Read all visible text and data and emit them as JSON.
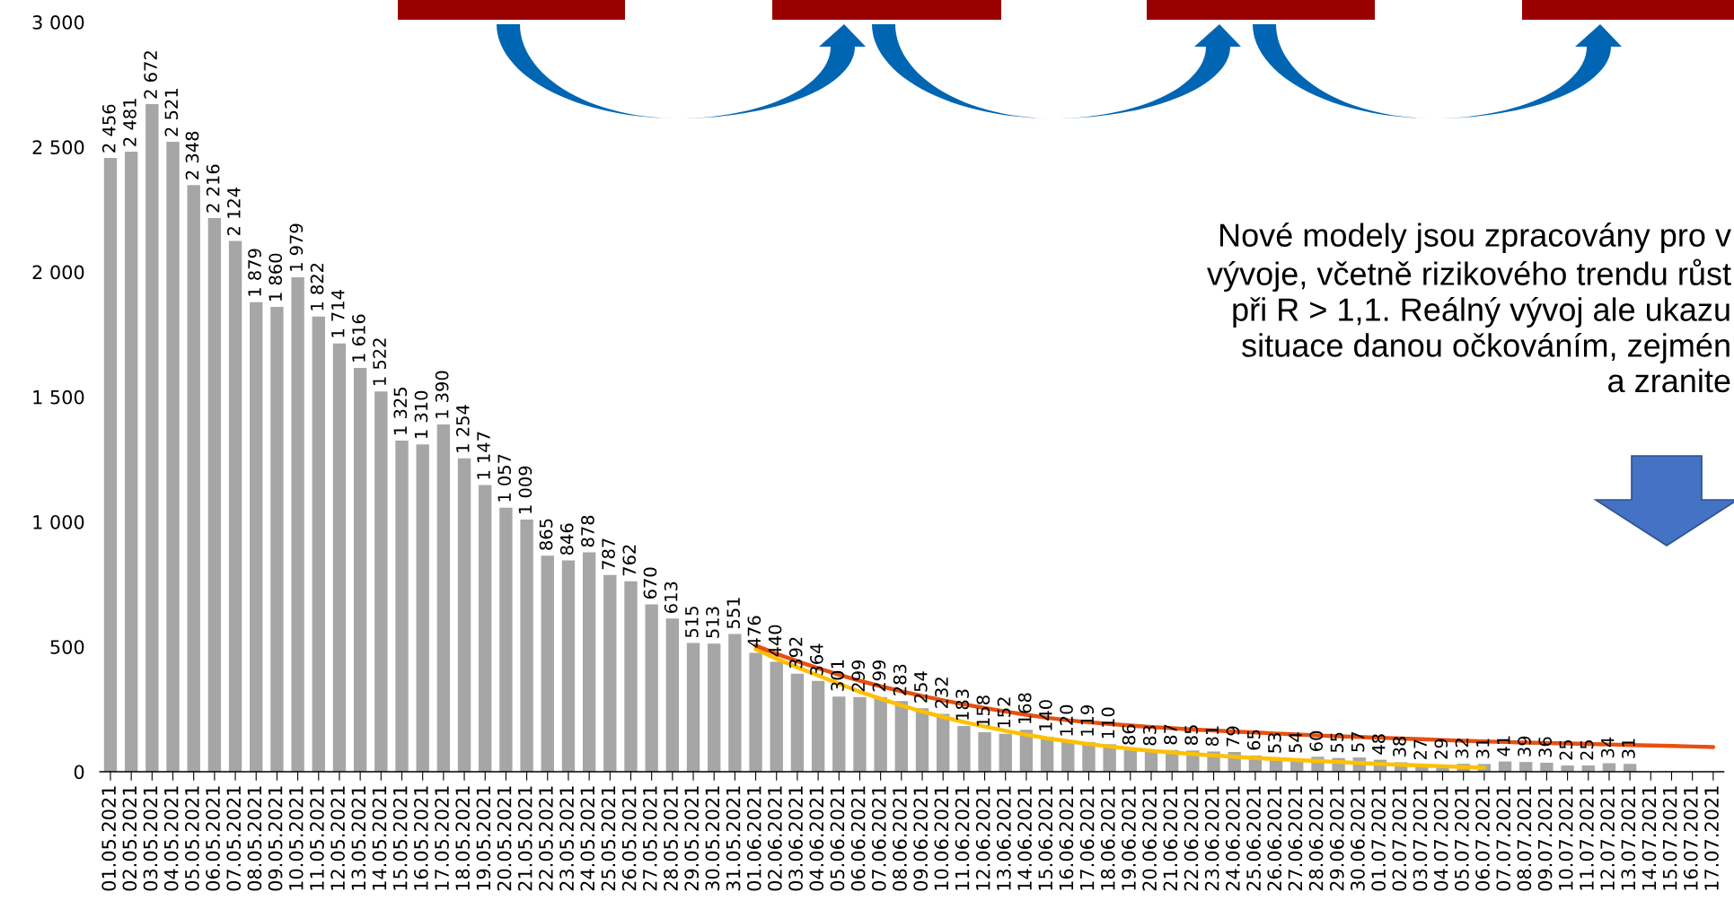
{
  "chart_data": {
    "type": "bar",
    "categories": [
      "01.05.2021",
      "02.05.2021",
      "03.05.2021",
      "04.05.2021",
      "05.05.2021",
      "06.05.2021",
      "07.05.2021",
      "08.05.2021",
      "09.05.2021",
      "10.05.2021",
      "11.05.2021",
      "12.05.2021",
      "13.05.2021",
      "14.05.2021",
      "15.05.2021",
      "16.05.2021",
      "17.05.2021",
      "18.05.2021",
      "19.05.2021",
      "20.05.2021",
      "21.05.2021",
      "22.05.2021",
      "23.05.2021",
      "24.05.2021",
      "25.05.2021",
      "26.05.2021",
      "27.05.2021",
      "28.05.2021",
      "29.05.2021",
      "30.05.2021",
      "31.05.2021",
      "01.06.2021",
      "02.06.2021",
      "03.06.2021",
      "04.06.2021",
      "05.06.2021",
      "06.06.2021",
      "07.06.2021",
      "08.06.2021",
      "09.06.2021",
      "10.06.2021",
      "11.06.2021",
      "12.06.2021",
      "13.06.2021",
      "14.06.2021",
      "15.06.2021",
      "16.06.2021",
      "17.06.2021",
      "18.06.2021",
      "19.06.2021",
      "20.06.2021",
      "21.06.2021",
      "22.06.2021",
      "23.06.2021",
      "24.06.2021",
      "25.06.2021",
      "26.06.2021",
      "27.06.2021",
      "28.06.2021",
      "29.06.2021",
      "30.06.2021",
      "01.07.2021",
      "02.07.2021",
      "03.07.2021",
      "04.07.2021",
      "05.07.2021",
      "06.07.2021",
      "07.07.2021",
      "08.07.2021",
      "09.07.2021",
      "10.07.2021",
      "11.07.2021",
      "12.07.2021",
      "13.07.2021",
      "14.07.2021",
      "15.07.2021",
      "16.07.2021",
      "17.07.2021"
    ],
    "series": [
      {
        "color": "#a6a6a6",
        "values": [
          2456,
          2481,
          2672,
          2521,
          2348,
          2216,
          2124,
          1879,
          1860,
          1979,
          1822,
          1714,
          1616,
          1522,
          1325,
          1310,
          1390,
          1254,
          1147,
          1057,
          1009,
          865,
          846,
          878,
          787,
          762,
          670,
          613,
          515,
          513,
          551,
          476,
          440,
          392,
          364,
          301,
          299,
          299,
          283,
          254,
          232,
          183,
          158,
          152,
          168,
          140,
          120,
          119,
          110,
          86,
          83,
          87,
          85,
          81,
          79,
          65,
          53,
          54,
          60,
          55,
          57,
          48,
          38,
          27,
          29,
          32,
          31,
          41,
          39,
          36,
          25,
          25,
          34,
          31,
          null,
          null,
          null,
          null
        ],
        "value_labels": [
          "2 456",
          "2 481",
          "2 672",
          "2 521",
          "2 348",
          "2 216",
          "2 124",
          "1 879",
          "1 860",
          "1 979",
          "1 822",
          "1 714",
          "1 616",
          "1 522",
          "1 325",
          "1 310",
          "1 390",
          "1 254",
          "1 147",
          "1 057",
          "1 009",
          "865",
          "846",
          "878",
          "787",
          "762",
          "670",
          "613",
          "515",
          "513",
          "551",
          "476",
          "440",
          "392",
          "364",
          "301",
          "299",
          "299",
          "283",
          "254",
          "232",
          "183",
          "158",
          "152",
          "168",
          "140",
          "120",
          "119",
          "110",
          "86",
          "83",
          "87",
          "85",
          "81",
          "79",
          "65",
          "53",
          "54",
          "60",
          "55",
          "57",
          "48",
          "38",
          "27",
          "29",
          "32",
          "31",
          "41",
          "39",
          "36",
          "25",
          "25",
          "34",
          "31",
          null,
          null,
          null,
          null
        ]
      },
      {
        "type": "line",
        "color": "#ffc000",
        "values": [
          null,
          null,
          null,
          null,
          null,
          null,
          null,
          null,
          null,
          null,
          null,
          null,
          null,
          null,
          null,
          null,
          null,
          null,
          null,
          null,
          null,
          null,
          null,
          null,
          null,
          null,
          null,
          null,
          null,
          null,
          null,
          490,
          452,
          418,
          385,
          352,
          320,
          292,
          265,
          241,
          219,
          199,
          181,
          164,
          148,
          134,
          122,
          111,
          101,
          92,
          84,
          77,
          71,
          65,
          60,
          55,
          51,
          47,
          43,
          39,
          35,
          31,
          28,
          25,
          22,
          19,
          16,
          null,
          null,
          null,
          null,
          null,
          null,
          null,
          null,
          null,
          null,
          null
        ]
      },
      {
        "type": "line",
        "color": "#e8500f",
        "values": [
          null,
          null,
          null,
          null,
          null,
          null,
          null,
          null,
          null,
          null,
          null,
          null,
          null,
          null,
          null,
          null,
          null,
          null,
          null,
          null,
          null,
          null,
          null,
          null,
          null,
          null,
          null,
          null,
          null,
          null,
          null,
          505,
          472,
          442,
          414,
          388,
          364,
          342,
          322,
          303,
          286,
          270,
          255,
          241,
          228,
          216,
          206,
          198,
          191,
          185,
          179,
          174,
          169,
          165,
          161,
          157,
          153,
          149,
          145,
          142,
          139,
          136,
          133,
          130,
          127,
          124,
          121,
          119,
          117,
          115,
          113,
          111,
          109,
          107,
          105,
          103,
          101,
          99
        ]
      }
    ],
    "ylim": [
      0,
      3000
    ],
    "yticks": [
      0,
      500,
      {
        "value": 1000,
        "label": "1 000"
      },
      {
        "value": 1500,
        "label": "1 500"
      },
      {
        "value": 2000,
        "label": "2 000"
      },
      {
        "value": 2500,
        "label": "2 500"
      },
      {
        "value": 3000,
        "label": "3 000"
      }
    ],
    "line_style": "solid",
    "marker": "none",
    "annotations": [
      "Nové modely jsou zpracovány pro v\nvývoje, včetně rizikového trendu růst\npři R > 1,1. Reálný vývoj ale ukazu\nsituace danou očkováním, zejmén\na zranite"
    ]
  }
}
